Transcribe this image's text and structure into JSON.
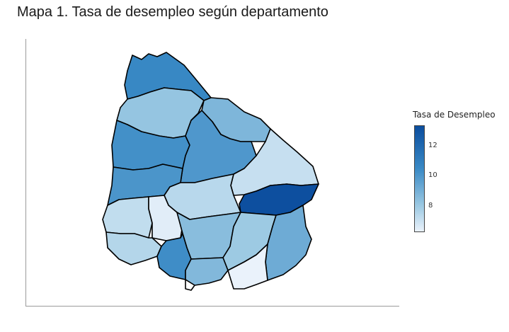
{
  "title": "Mapa 1. Tasa de desempleo según departamento",
  "legend": {
    "title": "Tasa de Desempleo",
    "ticks": [
      "12",
      "10",
      "8"
    ],
    "tick_values": [
      12,
      10,
      8
    ],
    "range": [
      6.3,
      13.4
    ],
    "colors": {
      "max": "#0b4d9e",
      "mid": "#3989c5",
      "low": "#9ac8e2",
      "min": "#eaf2fb"
    }
  },
  "map": {
    "variable": "Tasa de Desempleo",
    "region_values": [
      {
        "id": "northwest-top",
        "value": 10.6
      },
      {
        "id": "northwest-second",
        "value": 8.2
      },
      {
        "id": "northeast",
        "value": 8.8
      },
      {
        "id": "west-center",
        "value": 10.3
      },
      {
        "id": "center",
        "value": 10.0
      },
      {
        "id": "east-upper",
        "value": 7.1
      },
      {
        "id": "west-lower",
        "value": 10.1
      },
      {
        "id": "east-dark",
        "value": 13.3
      },
      {
        "id": "center-south",
        "value": 7.4
      },
      {
        "id": "southwest",
        "value": 7.2
      },
      {
        "id": "south-white",
        "value": 6.5
      },
      {
        "id": "south-center",
        "value": 8.5
      },
      {
        "id": "south-east-mid",
        "value": 8.0
      },
      {
        "id": "east-lower",
        "value": 9.2
      },
      {
        "id": "south-west-lower",
        "value": 7.5
      },
      {
        "id": "south-mid-dark",
        "value": 10.4
      },
      {
        "id": "south-small",
        "value": 8.7
      },
      {
        "id": "southeast-corner",
        "value": 6.3
      }
    ]
  }
}
